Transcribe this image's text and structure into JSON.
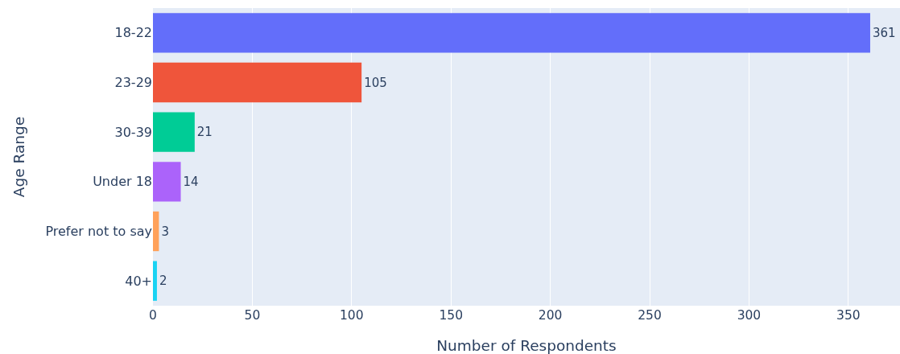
{
  "chart_data": {
    "type": "bar",
    "orientation": "horizontal",
    "xlabel": "Number of Respondents",
    "ylabel": "Age Range",
    "categories": [
      "18-22",
      "23-29",
      "30-39",
      "Under 18",
      "Prefer not to say",
      "40+"
    ],
    "values": [
      361,
      105,
      21,
      14,
      3,
      2
    ],
    "colors": [
      "#636efa",
      "#ef553b",
      "#00cc96",
      "#ab63fa",
      "#ffa15a",
      "#19d3f3"
    ],
    "xlim": [
      0,
      376
    ],
    "xticks": [
      0,
      50,
      100,
      150,
      200,
      250,
      300,
      350
    ],
    "grid": "x",
    "data_labels": true
  }
}
